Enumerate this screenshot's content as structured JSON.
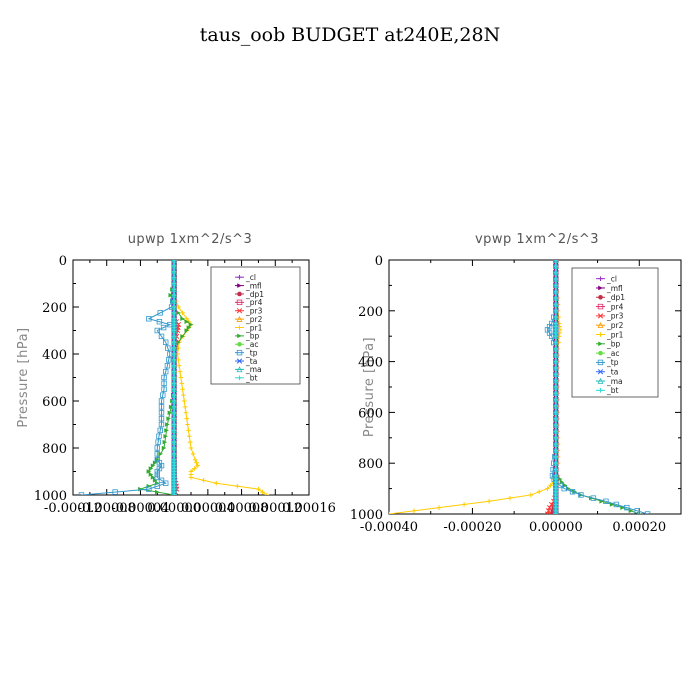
{
  "figure": {
    "title": "taus_oob  BUDGET at240E,28N"
  },
  "chart_data": [
    {
      "type": "line",
      "title": "upwp   1xm^2/s^3",
      "xlabel": "",
      "ylabel": "Pressure [hPa]",
      "xlim": [
        -0.00012,
        0.00016
      ],
      "ylim": [
        1000,
        0
      ],
      "y_inverted": true,
      "xticks": [
        "-0.00012",
        "-0.00008",
        "-0.00004",
        "0.00000",
        "0.00004",
        "0.00008",
        "0.00012",
        "0.00016"
      ],
      "yticks": [
        "0",
        "200",
        "400",
        "600",
        "800",
        "1000"
      ],
      "legend_position": "top-right",
      "grid": false,
      "y": [
        0,
        50,
        100,
        150,
        200,
        250,
        275,
        300,
        350,
        400,
        450,
        500,
        550,
        600,
        650,
        700,
        750,
        800,
        850,
        875,
        900,
        925,
        950,
        975,
        1000
      ],
      "series": [
        {
          "name": "_cl",
          "color": "#9933cc",
          "values": [
            0,
            0,
            0,
            0,
            0,
            0,
            0,
            0,
            0,
            0,
            0,
            0,
            0,
            0,
            0,
            0,
            0,
            0,
            0,
            0,
            0,
            0,
            0,
            0,
            0
          ]
        },
        {
          "name": "_mfl",
          "color": "#800080",
          "values": [
            0,
            0,
            0,
            0,
            0,
            0,
            0,
            0,
            0,
            0,
            0,
            0,
            0,
            0,
            0,
            0,
            0,
            0,
            0,
            0,
            0,
            0,
            0,
            0,
            0
          ]
        },
        {
          "name": "_dp1",
          "color": "#c0304a",
          "values": [
            0,
            0,
            0,
            0,
            0,
            0,
            0,
            0,
            0,
            0,
            0,
            0,
            0,
            0,
            0,
            0,
            0,
            0,
            0,
            0,
            0,
            0,
            0,
            0,
            0
          ]
        },
        {
          "name": "_pr4",
          "color": "#e0306a",
          "values": [
            0,
            0,
            0,
            0,
            0,
            0,
            0,
            0,
            0,
            0,
            0,
            0,
            0,
            0,
            0,
            0,
            0,
            0,
            0,
            0,
            0,
            0,
            0,
            0,
            0
          ]
        },
        {
          "name": "_pr3",
          "color": "#ff3333",
          "values": [
            0,
            0,
            0,
            0,
            0,
            0,
            5e-06,
            4e-06,
            2e-06,
            1e-06,
            0,
            0,
            0,
            0,
            0,
            0,
            0,
            0,
            0,
            0,
            0,
            0,
            2e-06,
            3e-06,
            0
          ]
        },
        {
          "name": "_pr2",
          "color": "#ff9900",
          "values": [
            0,
            0,
            0,
            0,
            0,
            0,
            0,
            0,
            0,
            0,
            0,
            0,
            0,
            0,
            0,
            0,
            0,
            0,
            0,
            0,
            0,
            0,
            0,
            0,
            0
          ]
        },
        {
          "name": "_pr1",
          "color": "#ffcc00",
          "values": [
            0,
            0,
            0,
            0,
            5e-06,
            1.5e-05,
            2e-05,
            1.5e-05,
            6e-06,
            4e-06,
            6e-06,
            8e-06,
            1e-05,
            1.2e-05,
            1.4e-05,
            1.6e-05,
            1.8e-05,
            2e-05,
            2.5e-05,
            2.8e-05,
            2e-05,
            2e-05,
            5e-05,
            0.0001,
            0.00011
          ]
        },
        {
          "name": "_bp",
          "color": "#33aa33",
          "values": [
            0,
            0,
            0,
            -4e-06,
            0,
            1e-05,
            2e-05,
            1.5e-05,
            5e-06,
            0,
            0,
            0,
            0,
            -2e-06,
            -5e-06,
            -8e-06,
            -1e-05,
            -1.2e-05,
            -2e-05,
            -2.5e-05,
            -3e-05,
            -2.5e-05,
            -2e-05,
            -4e-05,
            0
          ]
        },
        {
          "name": "_ac",
          "color": "#66dd44",
          "values": [
            0,
            0,
            0,
            0,
            0,
            0,
            0,
            0,
            0,
            0,
            0,
            0,
            0,
            0,
            0,
            0,
            0,
            0,
            0,
            0,
            0,
            0,
            0,
            0,
            0
          ]
        },
        {
          "name": "_tp",
          "color": "#3399cc",
          "values": [
            0,
            0,
            0,
            0,
            -3e-06,
            -3e-05,
            -5e-06,
            -2e-05,
            -1e-05,
            -5e-06,
            -8e-06,
            -1.2e-05,
            -1.2e-05,
            -1.5e-05,
            -1.5e-05,
            -1.5e-05,
            -1.8e-05,
            -2e-05,
            -2e-05,
            -1.5e-05,
            -2e-05,
            -2e-05,
            -1e-05,
            -3e-05,
            -0.00011
          ]
        },
        {
          "name": "_ta",
          "color": "#3366ff",
          "values": [
            0,
            0,
            0,
            0,
            0,
            0,
            0,
            0,
            0,
            0,
            0,
            0,
            0,
            0,
            0,
            0,
            0,
            0,
            0,
            0,
            0,
            0,
            0,
            0,
            0
          ]
        },
        {
          "name": "_ma",
          "color": "#22bbbb",
          "values": [
            0,
            0,
            0,
            0,
            0,
            0,
            0,
            0,
            0,
            0,
            0,
            0,
            0,
            0,
            0,
            0,
            0,
            0,
            0,
            0,
            0,
            0,
            0,
            0,
            0
          ]
        },
        {
          "name": "_bt",
          "color": "#33dddd",
          "values": [
            0,
            0,
            0,
            0,
            0,
            0,
            0,
            0,
            0,
            0,
            0,
            0,
            0,
            0,
            0,
            0,
            0,
            0,
            0,
            0,
            0,
            0,
            0,
            0,
            0
          ]
        }
      ]
    },
    {
      "type": "line",
      "title": "vpwp   1xm^2/s^3",
      "xlabel": "",
      "ylabel": "Pressure [hPa]",
      "xlim": [
        -0.0004,
        0.0003
      ],
      "ylim": [
        1000,
        0
      ],
      "y_inverted": true,
      "xticks": [
        "-0.00040",
        "-0.00020",
        "0.00000",
        "0.00020"
      ],
      "yticks": [
        "0",
        "200",
        "400",
        "600",
        "800",
        "1000"
      ],
      "legend_position": "top-right",
      "grid": false,
      "y": [
        0,
        50,
        100,
        150,
        200,
        250,
        275,
        300,
        350,
        400,
        450,
        500,
        550,
        600,
        650,
        700,
        750,
        800,
        850,
        875,
        900,
        925,
        950,
        975,
        1000
      ],
      "series": [
        {
          "name": "_cl",
          "color": "#9933cc",
          "values": [
            0,
            0,
            0,
            0,
            0,
            0,
            0,
            0,
            0,
            0,
            0,
            0,
            0,
            0,
            0,
            0,
            0,
            0,
            0,
            0,
            0,
            0,
            0,
            0,
            0
          ]
        },
        {
          "name": "_mfl",
          "color": "#800080",
          "values": [
            0,
            0,
            0,
            0,
            0,
            0,
            0,
            0,
            0,
            0,
            0,
            0,
            0,
            0,
            0,
            0,
            0,
            0,
            0,
            0,
            0,
            0,
            0,
            0,
            0
          ]
        },
        {
          "name": "_dp1",
          "color": "#c0304a",
          "values": [
            0,
            0,
            0,
            0,
            0,
            0,
            0,
            0,
            0,
            0,
            0,
            0,
            0,
            0,
            0,
            0,
            0,
            0,
            0,
            0,
            0,
            0,
            0,
            -5e-06,
            -1e-05
          ]
        },
        {
          "name": "_pr4",
          "color": "#e0306a",
          "values": [
            0,
            0,
            0,
            0,
            0,
            0,
            0,
            0,
            0,
            0,
            0,
            0,
            0,
            0,
            0,
            0,
            0,
            0,
            0,
            0,
            0,
            0,
            0,
            0,
            0
          ]
        },
        {
          "name": "_pr3",
          "color": "#ff3333",
          "values": [
            0,
            0,
            0,
            0,
            0,
            0,
            0,
            0,
            0,
            0,
            0,
            0,
            0,
            0,
            0,
            0,
            0,
            0,
            0,
            0,
            0,
            0,
            -5e-06,
            -1.5e-05,
            -2e-05
          ]
        },
        {
          "name": "_pr2",
          "color": "#ff9900",
          "values": [
            0,
            0,
            0,
            0,
            0,
            0,
            0,
            0,
            0,
            0,
            0,
            0,
            0,
            0,
            0,
            0,
            0,
            0,
            0,
            0,
            0,
            0,
            0,
            0,
            0
          ]
        },
        {
          "name": "_pr1",
          "color": "#ffcc00",
          "values": [
            0,
            0,
            0,
            5e-06,
            5e-06,
            8e-06,
            1e-05,
            8e-06,
            5e-06,
            4e-06,
            4e-06,
            4e-06,
            4e-06,
            4e-06,
            4e-06,
            5e-06,
            5e-06,
            5e-06,
            -5e-06,
            -5e-06,
            -2e-05,
            -6e-05,
            -0.00016,
            -0.00028,
            -0.0004
          ]
        },
        {
          "name": "_bp",
          "color": "#33aa33",
          "values": [
            0,
            0,
            0,
            0,
            0,
            0,
            0,
            0,
            0,
            0,
            0,
            0,
            0,
            0,
            0,
            0,
            0,
            0,
            5e-06,
            1.5e-05,
            3e-05,
            6e-05,
            0.00011,
            0.00016,
            0.0002
          ]
        },
        {
          "name": "_ac",
          "color": "#66dd44",
          "values": [
            0,
            0,
            0,
            0,
            0,
            0,
            0,
            0,
            0,
            0,
            0,
            0,
            0,
            0,
            0,
            0,
            0,
            0,
            0,
            0,
            0,
            0,
            0,
            0,
            0
          ]
        },
        {
          "name": "_tp",
          "color": "#3399cc",
          "values": [
            0,
            0,
            0,
            0,
            0,
            -1e-05,
            -2e-05,
            -1e-05,
            0,
            0,
            0,
            0,
            0,
            0,
            0,
            0,
            0,
            -5e-06,
            -8e-06,
            0,
            2e-05,
            6e-05,
            0.00012,
            0.00017,
            0.00022
          ]
        },
        {
          "name": "_ta",
          "color": "#3366ff",
          "values": [
            0,
            0,
            0,
            0,
            0,
            0,
            0,
            0,
            0,
            0,
            0,
            0,
            0,
            0,
            0,
            0,
            0,
            0,
            0,
            0,
            0,
            0,
            0,
            0,
            0
          ]
        },
        {
          "name": "_ma",
          "color": "#22bbbb",
          "values": [
            0,
            0,
            0,
            0,
            0,
            0,
            0,
            0,
            0,
            0,
            0,
            0,
            0,
            0,
            0,
            0,
            0,
            0,
            0,
            0,
            0,
            0,
            0,
            0,
            0
          ]
        },
        {
          "name": "_bt",
          "color": "#33dddd",
          "values": [
            0,
            0,
            0,
            0,
            0,
            0,
            0,
            0,
            0,
            0,
            0,
            0,
            0,
            0,
            0,
            0,
            0,
            0,
            0,
            0,
            0,
            0,
            0,
            0,
            0
          ]
        }
      ]
    }
  ]
}
